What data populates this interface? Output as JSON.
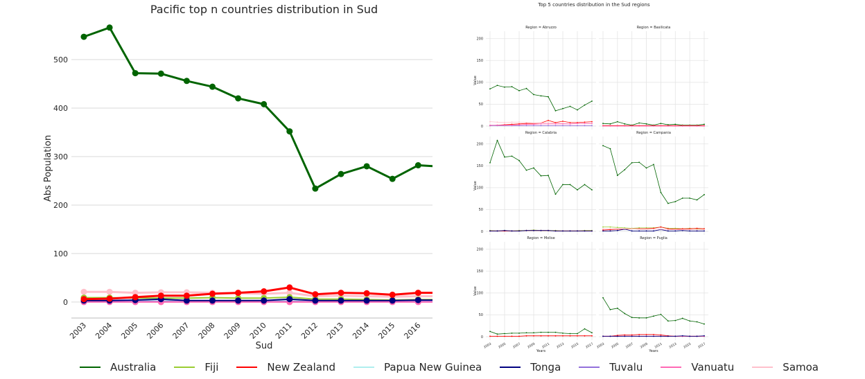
{
  "main_chart": {
    "title": "Pacific top n countries distribution in Sud",
    "xlabel": "Sud",
    "ylabel": "Abs Population"
  },
  "facet_chart": {
    "title": "Top 5 countries distribution in the Sud regions",
    "xlabel": "Years",
    "ylabel": "Value"
  },
  "legend": [
    {
      "name": "Australia",
      "color": "#006400"
    },
    {
      "name": "Fiji",
      "color": "#9acd32"
    },
    {
      "name": "New Zealand",
      "color": "#ff0000"
    },
    {
      "name": "Papua New Guinea",
      "color": "#afeeee"
    },
    {
      "name": "Tonga",
      "color": "#000080"
    },
    {
      "name": "Tuvalu",
      "color": "#9370db"
    },
    {
      "name": "Vanuatu",
      "color": "#ff69b4"
    },
    {
      "name": "Samoa",
      "color": "#ffc0cb"
    }
  ],
  "chart_data": [
    {
      "type": "line",
      "title": "Pacific top n countries distribution in Sud",
      "xlabel": "Sud",
      "ylabel": "Abs Population",
      "x": [
        "2003",
        "2004",
        "2005",
        "2006",
        "2007",
        "2008",
        "2009",
        "2010",
        "2011",
        "2012",
        "2013",
        "2014",
        "2015",
        "2016",
        "2017"
      ],
      "ylim": [
        -33,
        580
      ],
      "yticks": [
        0,
        100,
        200,
        300,
        400,
        500
      ],
      "grid": "horizontal",
      "series": [
        {
          "name": "Samoa",
          "color": "#ffc0cb",
          "width": 3,
          "values": [
            21,
            21,
            19,
            20,
            20,
            19,
            18,
            17,
            19,
            12,
            13,
            12,
            11,
            12,
            12
          ]
        },
        {
          "name": "Fiji",
          "color": "#9acd32",
          "width": 2,
          "values": [
            9,
            9,
            8,
            8,
            8,
            9,
            8,
            8,
            10,
            6,
            6,
            5,
            4,
            5,
            5
          ]
        },
        {
          "name": "Papua New Guinea",
          "color": "#afeeee",
          "width": 2,
          "values": [
            2,
            2,
            2,
            2,
            2,
            2,
            2,
            2,
            2,
            2,
            2,
            2,
            2,
            2,
            2
          ]
        },
        {
          "name": "Tuvalu",
          "color": "#9370db",
          "width": 2,
          "values": [
            1,
            1,
            1,
            1,
            1,
            1,
            1,
            1,
            1,
            1,
            1,
            1,
            1,
            1,
            1
          ]
        },
        {
          "name": "Vanuatu",
          "color": "#ff69b4",
          "width": 2,
          "values": [
            0,
            0,
            0,
            0,
            0,
            0,
            0,
            0,
            0,
            0,
            0,
            0,
            0,
            0,
            0
          ]
        },
        {
          "name": "Tonga",
          "color": "#000080",
          "width": 2,
          "values": [
            3,
            3,
            4,
            6,
            3,
            3,
            3,
            3,
            6,
            3,
            3,
            3,
            3,
            4,
            4
          ]
        },
        {
          "name": "New Zealand",
          "color": "#ff0000",
          "width": 3,
          "values": [
            6,
            7,
            10,
            13,
            13,
            17,
            19,
            22,
            30,
            16,
            19,
            18,
            15,
            19,
            19
          ]
        },
        {
          "name": "Australia",
          "color": "#006400",
          "width": 3,
          "values": [
            547,
            566,
            472,
            471,
            456,
            444,
            420,
            408,
            352,
            234,
            264,
            280,
            254,
            282,
            279
          ]
        }
      ]
    },
    {
      "type": "line",
      "title": "Top 5 countries distribution in the Sud regions",
      "xlabel": "Years",
      "ylabel": "Value",
      "x": [
        2003,
        2004,
        2005,
        2006,
        2007,
        2008,
        2009,
        2010,
        2011,
        2012,
        2013,
        2014,
        2015,
        2016,
        2017
      ],
      "xticks": [
        "2003",
        "2005",
        "2007",
        "2009",
        "2011",
        "2013",
        "2015",
        "2017"
      ],
      "ylim": [
        -8,
        217
      ],
      "yticks": [
        0,
        50,
        100,
        150,
        200
      ],
      "panels": [
        {
          "title": "Region = Abruzzo",
          "series": [
            {
              "name": "Australia",
              "color": "#006400",
              "values": [
                85,
                93,
                89,
                90,
                81,
                86,
                72,
                69,
                67,
                35,
                40,
                45,
                37,
                48,
                57
              ]
            },
            {
              "name": "New Zealand",
              "color": "#ff0000",
              "values": [
                1,
                2,
                3,
                4,
                5,
                6,
                6,
                7,
                13,
                8,
                11,
                8,
                8,
                9,
                10
              ]
            },
            {
              "name": "Samoa",
              "color": "#ffc0cb",
              "values": [
                10,
                9,
                8,
                9,
                9,
                8,
                7,
                7,
                8,
                6,
                6,
                5,
                6,
                6,
                6
              ]
            },
            {
              "name": "Tuvalu",
              "color": "#9370db",
              "values": [
                1,
                1,
                1,
                1,
                1,
                1,
                1,
                1,
                1,
                1,
                1,
                1,
                1,
                1,
                1
              ]
            },
            {
              "name": "Vanuatu",
              "color": "#ff69b4",
              "values": [
                2,
                2,
                2,
                2,
                3,
                4,
                4,
                5,
                5,
                5,
                5,
                5,
                6,
                6,
                6
              ]
            }
          ]
        },
        {
          "title": "Region = Basilicata",
          "series": [
            {
              "name": "Australia",
              "color": "#006400",
              "values": [
                6,
                5,
                10,
                5,
                2,
                7,
                5,
                2,
                6,
                3,
                4,
                2,
                2,
                2,
                4
              ]
            },
            {
              "name": "New Zealand",
              "color": "#ff0000",
              "values": [
                1,
                1,
                1,
                1,
                1,
                1,
                1,
                1,
                1,
                1,
                1,
                1,
                1,
                1,
                1
              ]
            },
            {
              "name": "Vanuatu",
              "color": "#ff69b4",
              "values": [
                0,
                0,
                0,
                0,
                0,
                0,
                0,
                0,
                0,
                0,
                0,
                0,
                0,
                0,
                0
              ]
            }
          ]
        },
        {
          "title": "Region = Calabria",
          "series": [
            {
              "name": "Australia",
              "color": "#006400",
              "values": [
                157,
                208,
                170,
                172,
                162,
                140,
                145,
                127,
                128,
                85,
                107,
                107,
                95,
                107,
                95
              ]
            },
            {
              "name": "Fiji",
              "color": "#9acd32",
              "values": [
                2,
                1,
                2,
                1,
                2,
                2,
                3,
                2,
                2,
                2,
                1,
                1,
                1,
                2,
                2
              ]
            },
            {
              "name": "New Zealand",
              "color": "#ff0000",
              "values": [
                1,
                1,
                1,
                1,
                1,
                2,
                2,
                2,
                2,
                1,
                1,
                1,
                1,
                1,
                1
              ]
            },
            {
              "name": "Tonga",
              "color": "#000080",
              "values": [
                1,
                1,
                2,
                1,
                1,
                2,
                2,
                2,
                2,
                1,
                1,
                1,
                1,
                1,
                1
              ]
            }
          ]
        },
        {
          "title": "Region = Campania",
          "series": [
            {
              "name": "Australia",
              "color": "#006400",
              "values": [
                196,
                189,
                128,
                141,
                157,
                158,
                145,
                153,
                89,
                64,
                68,
                76,
                76,
                72,
                84
              ]
            },
            {
              "name": "Fiji",
              "color": "#9acd32",
              "values": [
                10,
                10,
                9,
                8,
                7,
                8,
                8,
                8,
                10,
                7,
                7,
                6,
                7,
                6,
                6
              ]
            },
            {
              "name": "New Zealand",
              "color": "#ff0000",
              "values": [
                3,
                4,
                5,
                5,
                6,
                6,
                6,
                7,
                10,
                6,
                5,
                6,
                6,
                7,
                6
              ]
            },
            {
              "name": "Tonga",
              "color": "#000080",
              "values": [
                1,
                1,
                2,
                5,
                1,
                1,
                1,
                1,
                4,
                1,
                1,
                2,
                1,
                1,
                1
              ]
            },
            {
              "name": "Samoa",
              "color": "#ffc0cb",
              "values": [
                6,
                6,
                6,
                6,
                6,
                5,
                5,
                5,
                5,
                4,
                4,
                4,
                4,
                4,
                4
              ]
            }
          ]
        },
        {
          "title": "Region = Molise",
          "series": [
            {
              "name": "Australia",
              "color": "#006400",
              "values": [
                12,
                6,
                7,
                8,
                8,
                9,
                9,
                10,
                10,
                10,
                8,
                7,
                7,
                18,
                9
              ]
            },
            {
              "name": "New Zealand",
              "color": "#ff0000",
              "values": [
                1,
                1,
                1,
                1,
                1,
                2,
                2,
                2,
                2,
                2,
                2,
                2,
                2,
                2,
                2
              ]
            }
          ]
        },
        {
          "title": "Region = Puglia",
          "series": [
            {
              "name": "Australia",
              "color": "#006400",
              "values": [
                89,
                62,
                65,
                53,
                44,
                43,
                43,
                47,
                51,
                36,
                37,
                42,
                36,
                34,
                29
              ]
            },
            {
              "name": "New Zealand",
              "color": "#ff0000",
              "values": [
                1,
                1,
                3,
                4,
                4,
                5,
                5,
                5,
                4,
                2,
                1,
                1,
                1,
                1,
                1
              ]
            },
            {
              "name": "Vanuatu",
              "color": "#ff69b4",
              "values": [
                1,
                1,
                1,
                1,
                1,
                1,
                1,
                1,
                1,
                1,
                1,
                1,
                1,
                1,
                1
              ]
            },
            {
              "name": "Tonga",
              "color": "#000080",
              "values": [
                1,
                1,
                1,
                1,
                1,
                1,
                1,
                1,
                1,
                1,
                1,
                2,
                1,
                1,
                2
              ]
            }
          ]
        }
      ]
    }
  ]
}
